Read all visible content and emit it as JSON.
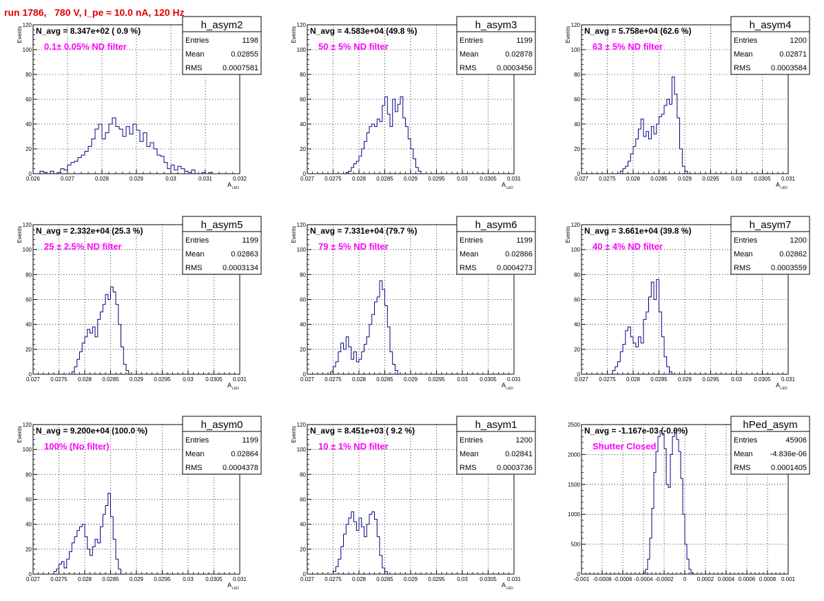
{
  "header": {
    "title": "run 1786,   780 V, I_pe ≈ 10.0 nA, 120 Hz",
    "color": "#e00000"
  },
  "colors": {
    "histogram_line": "#000080",
    "annotation": "#ff00ff",
    "axis": "#000000",
    "grid": "#000000"
  },
  "chart_data": [
    {
      "type": "histogram",
      "name": "h_asym2",
      "stats": {
        "entries_label": "Entries",
        "entries": "1198",
        "mean_label": "Mean",
        "mean": "0.02855",
        "rms_label": "RMS",
        "rms": "0.0007581"
      },
      "navg_text": "N_avg = 8.347e+02 ( 0.9 %)",
      "annotation": "0.1± 0.05% ND filter",
      "ylabel": "Events",
      "xlabel": "A",
      "xlabel_sub": "LED",
      "xlim": [
        0.026,
        0.032
      ],
      "ylim": [
        0,
        120
      ],
      "xticks": [
        0.026,
        0.027,
        0.028,
        0.029,
        0.03,
        0.031,
        0.032
      ],
      "xtick_labels": [
        "0.026",
        "0.027",
        "0.028",
        "0.029",
        "0.03",
        "0.031",
        "0.032"
      ],
      "yticks": [
        0,
        20,
        40,
        60,
        80,
        100,
        120
      ],
      "ytick_labels": [
        "0",
        "20",
        "40",
        "60",
        "80",
        "100",
        "120"
      ],
      "grid": true,
      "bins": {
        "start": 0.0262,
        "width": 0.0001,
        "counts": [
          2,
          1,
          0,
          2,
          0,
          1,
          4,
          3,
          7,
          9,
          10,
          13,
          15,
          18,
          22,
          28,
          36,
          40,
          28,
          33,
          40,
          45,
          38,
          36,
          30,
          38,
          32,
          40,
          35,
          26,
          33,
          22,
          25,
          20,
          15,
          14,
          9,
          4,
          7,
          3,
          6,
          4,
          2,
          1,
          3,
          0,
          0,
          1,
          0,
          1
        ]
      }
    },
    {
      "type": "histogram",
      "name": "h_asym3",
      "stats": {
        "entries_label": "Entries",
        "entries": "1199",
        "mean_label": "Mean",
        "mean": "0.02878",
        "rms_label": "RMS",
        "rms": "0.0003456"
      },
      "navg_text": "N_avg = 4.583e+04 (49.8 %)",
      "annotation": "50 ± 5% ND filter",
      "ylabel": "Events",
      "xlabel": "A",
      "xlabel_sub": "LED",
      "xlim": [
        0.027,
        0.031
      ],
      "ylim": [
        0,
        120
      ],
      "xticks": [
        0.027,
        0.0275,
        0.028,
        0.0285,
        0.029,
        0.0295,
        0.03,
        0.0305,
        0.031
      ],
      "xtick_labels": [
        "0.027",
        "0.0275",
        "0.028",
        "0.0285",
        "0.029",
        "0.0295",
        "0.03",
        "0.0305",
        "0.031"
      ],
      "yticks": [
        0,
        20,
        40,
        60,
        80,
        100,
        120
      ],
      "ytick_labels": [
        "0",
        "20",
        "40",
        "60",
        "80",
        "100",
        "120"
      ],
      "grid": true,
      "bins": {
        "start": 0.02775,
        "width": 5e-05,
        "counts": [
          1,
          2,
          5,
          8,
          10,
          14,
          20,
          26,
          33,
          38,
          40,
          38,
          44,
          42,
          55,
          62,
          48,
          38,
          60,
          50,
          56,
          62,
          45,
          38,
          28,
          20,
          12,
          5,
          2
        ]
      }
    },
    {
      "type": "histogram",
      "name": "h_asym4",
      "stats": {
        "entries_label": "Entries",
        "entries": "1200",
        "mean_label": "Mean",
        "mean": "0.02871",
        "rms_label": "RMS",
        "rms": "0.0003584"
      },
      "navg_text": "N_avg = 5.758e+04 (62.6 %)",
      "annotation": "63 ± 5% ND filter",
      "ylabel": "Events",
      "xlabel": "A",
      "xlabel_sub": "LED",
      "xlim": [
        0.027,
        0.031
      ],
      "ylim": [
        0,
        120
      ],
      "xticks": [
        0.027,
        0.0275,
        0.028,
        0.0285,
        0.029,
        0.0295,
        0.03,
        0.0305,
        0.031
      ],
      "xtick_labels": [
        "0.027",
        "0.0275",
        "0.028",
        "0.0285",
        "0.029",
        "0.0295",
        "0.03",
        "0.0305",
        "0.031"
      ],
      "yticks": [
        0,
        20,
        40,
        60,
        80,
        100,
        120
      ],
      "ytick_labels": [
        "0",
        "20",
        "40",
        "60",
        "80",
        "100",
        "120"
      ],
      "grid": true,
      "bins": {
        "start": 0.02775,
        "width": 5e-05,
        "counts": [
          2,
          4,
          6,
          10,
          16,
          22,
          28,
          36,
          44,
          30,
          34,
          28,
          38,
          32,
          40,
          46,
          48,
          55,
          60,
          56,
          78,
          64,
          45,
          20,
          6,
          2
        ]
      }
    },
    {
      "type": "histogram",
      "name": "h_asym5",
      "stats": {
        "entries_label": "Entries",
        "entries": "1199",
        "mean_label": "Mean",
        "mean": "0.02863",
        "rms_label": "RMS",
        "rms": "0.0003134"
      },
      "navg_text": "N_avg = 2.332e+04 (25.3 %)",
      "annotation": "25 ± 2.5% ND filter",
      "ylabel": "Events",
      "xlabel": "A",
      "xlabel_sub": "LED",
      "xlim": [
        0.027,
        0.031
      ],
      "ylim": [
        0,
        120
      ],
      "xticks": [
        0.027,
        0.0275,
        0.028,
        0.0285,
        0.029,
        0.0295,
        0.03,
        0.0305,
        0.031
      ],
      "xtick_labels": [
        "0.027",
        "0.0275",
        "0.028",
        "0.0285",
        "0.029",
        "0.0295",
        "0.03",
        "0.0305",
        "0.031"
      ],
      "yticks": [
        0,
        20,
        40,
        60,
        80,
        100,
        120
      ],
      "ytick_labels": [
        "0",
        "20",
        "40",
        "60",
        "80",
        "100",
        "120"
      ],
      "grid": true,
      "bins": {
        "start": 0.02775,
        "width": 5e-05,
        "counts": [
          2,
          6,
          12,
          18,
          25,
          30,
          36,
          33,
          38,
          30,
          44,
          50,
          56,
          64,
          60,
          70,
          66,
          56,
          40,
          22,
          8,
          3
        ]
      }
    },
    {
      "type": "histogram",
      "name": "h_asym6",
      "stats": {
        "entries_label": "Entries",
        "entries": "1199",
        "mean_label": "Mean",
        "mean": "0.02866",
        "rms_label": "RMS",
        "rms": "0.0004273"
      },
      "navg_text": "N_avg = 7.331e+04 (79.7 %)",
      "annotation": "79 ± 5% ND filter",
      "ylabel": "Events",
      "xlabel": "A",
      "xlabel_sub": "LED",
      "xlim": [
        0.027,
        0.031
      ],
      "ylim": [
        0,
        120
      ],
      "xticks": [
        0.027,
        0.0275,
        0.028,
        0.0285,
        0.029,
        0.0295,
        0.03,
        0.0305,
        0.031
      ],
      "xtick_labels": [
        "0.027",
        "0.0275",
        "0.028",
        "0.0285",
        "0.029",
        "0.0295",
        "0.03",
        "0.0305",
        "0.031"
      ],
      "yticks": [
        0,
        20,
        40,
        60,
        80,
        100,
        120
      ],
      "ytick_labels": [
        "0",
        "20",
        "40",
        "60",
        "80",
        "100",
        "120"
      ],
      "grid": true,
      "bins": {
        "start": 0.02745,
        "width": 5e-05,
        "counts": [
          2,
          6,
          10,
          18,
          25,
          20,
          30,
          22,
          12,
          18,
          10,
          12,
          18,
          24,
          30,
          40,
          48,
          58,
          62,
          75,
          68,
          55,
          38,
          18,
          8,
          3
        ]
      }
    },
    {
      "type": "histogram",
      "name": "h_asym7",
      "stats": {
        "entries_label": "Entries",
        "entries": "1200",
        "mean_label": "Mean",
        "mean": "0.02862",
        "rms_label": "RMS",
        "rms": "0.0003559"
      },
      "navg_text": "N_avg = 3.661e+04 (39.8 %)",
      "annotation": "40 ± 4% ND filter",
      "ylabel": "Events",
      "xlabel": "A",
      "xlabel_sub": "LED",
      "xlim": [
        0.027,
        0.031
      ],
      "ylim": [
        0,
        120
      ],
      "xticks": [
        0.027,
        0.0275,
        0.028,
        0.0285,
        0.029,
        0.0295,
        0.03,
        0.0305,
        0.031
      ],
      "xtick_labels": [
        "0.027",
        "0.0275",
        "0.028",
        "0.0285",
        "0.029",
        "0.0295",
        "0.03",
        "0.0305",
        "0.031"
      ],
      "yticks": [
        0,
        20,
        40,
        60,
        80,
        100,
        120
      ],
      "ytick_labels": [
        "0",
        "20",
        "40",
        "60",
        "80",
        "100",
        "120"
      ],
      "grid": true,
      "bins": {
        "start": 0.0276,
        "width": 5e-05,
        "counts": [
          3,
          6,
          10,
          18,
          24,
          35,
          38,
          30,
          25,
          22,
          30,
          25,
          44,
          50,
          62,
          74,
          60,
          76,
          50,
          30,
          14,
          6,
          2
        ]
      }
    },
    {
      "type": "histogram",
      "name": "h_asym0",
      "stats": {
        "entries_label": "Entries",
        "entries": "1199",
        "mean_label": "Mean",
        "mean": "0.02864",
        "rms_label": "RMS",
        "rms": "0.0004378"
      },
      "navg_text": "N_avg = 9.200e+04 (100.0 %)",
      "annotation": "100% (No filter)",
      "ylabel": "Events",
      "xlabel": "A",
      "xlabel_sub": "LED",
      "xlim": [
        0.027,
        0.031
      ],
      "ylim": [
        0,
        120
      ],
      "xticks": [
        0.027,
        0.0275,
        0.028,
        0.0285,
        0.029,
        0.0295,
        0.03,
        0.0305,
        0.031
      ],
      "xtick_labels": [
        "0.027",
        "0.0275",
        "0.028",
        "0.0285",
        "0.029",
        "0.0295",
        "0.03",
        "0.0305",
        "0.031"
      ],
      "yticks": [
        0,
        20,
        40,
        60,
        80,
        100,
        120
      ],
      "ytick_labels": [
        "0",
        "20",
        "40",
        "60",
        "80",
        "100",
        "120"
      ],
      "grid": true,
      "bins": {
        "start": 0.0274,
        "width": 5e-05,
        "counts": [
          2,
          4,
          8,
          10,
          5,
          12,
          18,
          25,
          30,
          35,
          38,
          40,
          30,
          20,
          15,
          22,
          28,
          25,
          38,
          48,
          55,
          65,
          46,
          28,
          12,
          4
        ]
      }
    },
    {
      "type": "histogram",
      "name": "h_asym1",
      "stats": {
        "entries_label": "Entries",
        "entries": "1200",
        "mean_label": "Mean",
        "mean": "0.02841",
        "rms_label": "RMS",
        "rms": "0.0003736"
      },
      "navg_text": "N_avg = 8.451e+03 ( 9.2 %)",
      "annotation": "10 ± 1% ND filter",
      "ylabel": "Events",
      "xlabel": "A",
      "xlabel_sub": "LED",
      "xlim": [
        0.027,
        0.031
      ],
      "ylim": [
        0,
        120
      ],
      "xticks": [
        0.027,
        0.0275,
        0.028,
        0.0285,
        0.029,
        0.0295,
        0.03,
        0.0305,
        0.031
      ],
      "xtick_labels": [
        "0.027",
        "0.0275",
        "0.028",
        "0.0285",
        "0.029",
        "0.0295",
        "0.03",
        "0.0305",
        "0.031"
      ],
      "yticks": [
        0,
        20,
        40,
        60,
        80,
        100,
        120
      ],
      "ytick_labels": [
        "0",
        "20",
        "40",
        "60",
        "80",
        "100",
        "120"
      ],
      "grid": true,
      "bins": {
        "start": 0.0275,
        "width": 5e-05,
        "counts": [
          2,
          6,
          12,
          22,
          32,
          40,
          45,
          50,
          42,
          35,
          45,
          38,
          30,
          40,
          48,
          50,
          44,
          30,
          15,
          5,
          2
        ]
      }
    },
    {
      "type": "histogram",
      "name": "hPed_asym",
      "stats": {
        "entries_label": "Entries",
        "entries": "45906",
        "mean_label": "Mean",
        "mean": "-4.836e-06",
        "rms_label": "RMS",
        "rms": "0.0001405"
      },
      "navg_text": "N_avg = -1.167e-03 (-0.0%)",
      "annotation": "Shutter Closed",
      "ylabel": "",
      "xlabel": "",
      "xlabel_sub": "",
      "xlim": [
        -0.001,
        0.001
      ],
      "ylim": [
        0,
        2500
      ],
      "xticks": [
        -0.001,
        -0.0008,
        -0.0006,
        -0.0004,
        -0.0002,
        0,
        0.0002,
        0.0004,
        0.0006,
        0.0008,
        0.001
      ],
      "xtick_labels": [
        "-0.001",
        "-0.0008",
        "-0.0006",
        "-0.0004",
        "-0.0002",
        "0",
        "0.0002",
        "0.0004",
        "0.0006",
        "0.0008",
        "0.001"
      ],
      "yticks": [
        0,
        500,
        1000,
        1500,
        2000,
        2500
      ],
      "ytick_labels": [
        "0",
        "500",
        "1000",
        "1500",
        "2000",
        "2500"
      ],
      "grid": true,
      "bins": {
        "start": -0.0004,
        "width": 2e-05,
        "counts": [
          20,
          80,
          250,
          600,
          1100,
          1700,
          2050,
          2300,
          2400,
          2350,
          2100,
          1500,
          1450,
          2000,
          2300,
          2400,
          2250,
          2050,
          1600,
          1000,
          500,
          250,
          80,
          20
        ]
      }
    }
  ]
}
